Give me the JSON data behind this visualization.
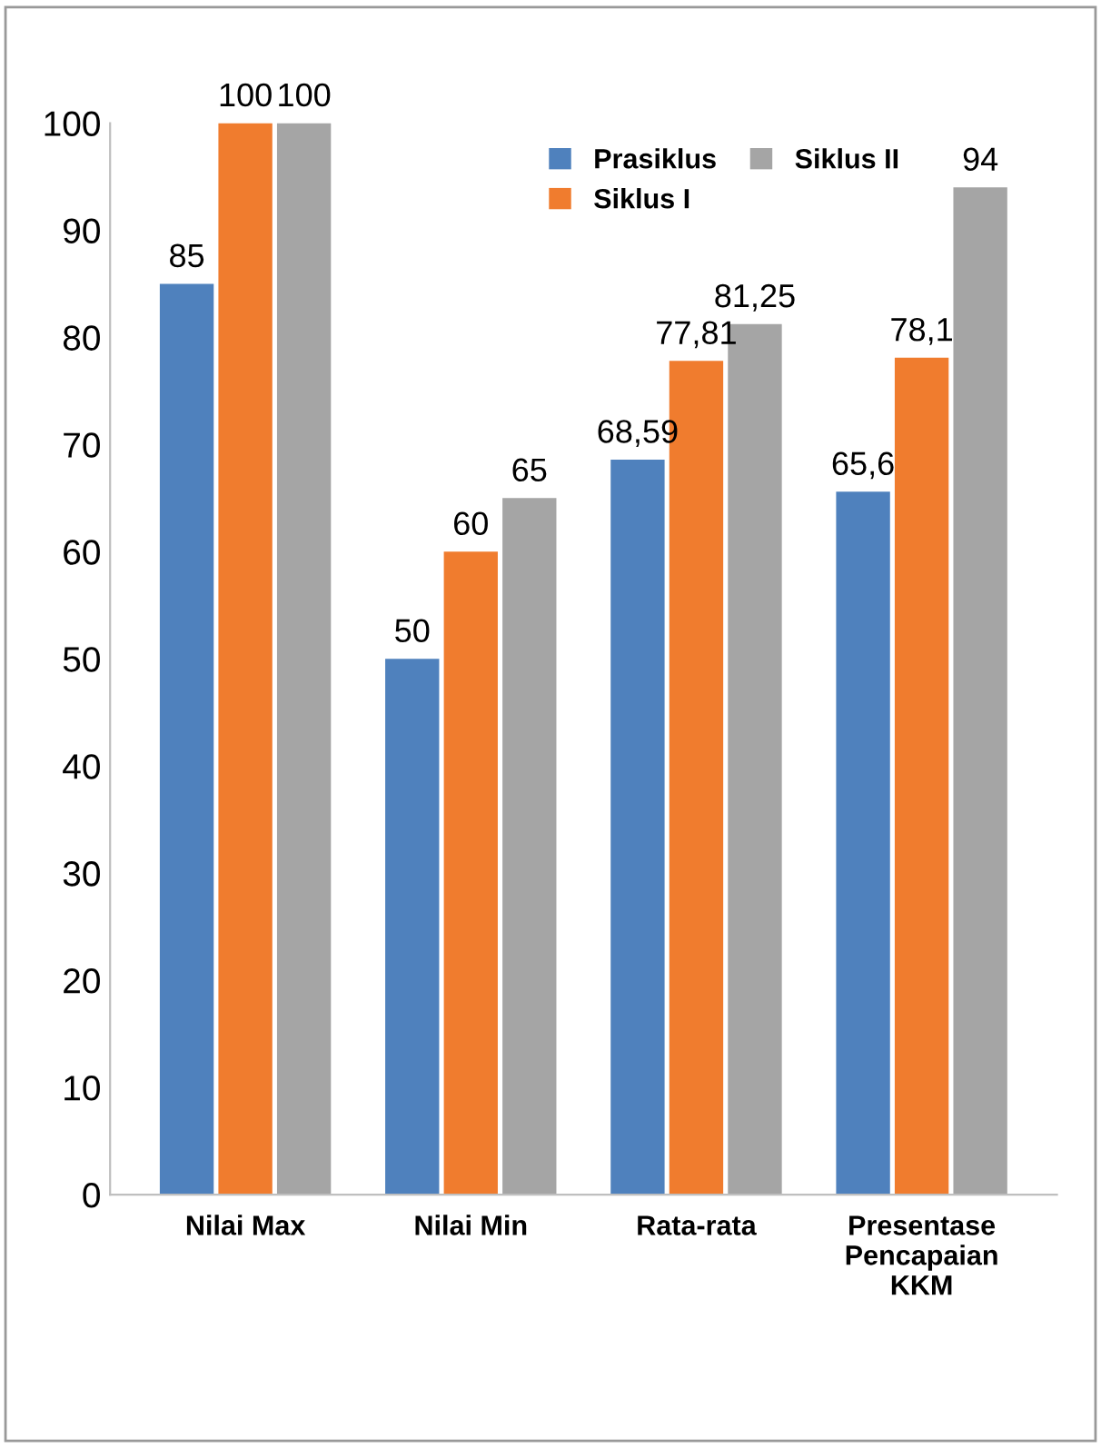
{
  "chart_data": {
    "type": "bar",
    "categories": [
      "Nilai Max",
      "Nilai Min",
      "Rata-rata",
      "Presentase Pencapaian KKM"
    ],
    "series": [
      {
        "name": "Prasiklus",
        "color": "#4f81bd",
        "values": [
          85,
          50,
          68.59,
          65.6
        ],
        "value_labels": [
          "85",
          "50",
          "68,59",
          "65,6"
        ]
      },
      {
        "name": "Siklus I",
        "color": "#f07c2e",
        "values": [
          100,
          60,
          77.81,
          78.1
        ],
        "value_labels": [
          "100",
          "60",
          "77,81",
          "78,1"
        ]
      },
      {
        "name": "Siklus II",
        "color": "#a5a5a5",
        "values": [
          100,
          65,
          81.25,
          94
        ],
        "value_labels": [
          "100",
          "65",
          "81,25",
          "94"
        ]
      }
    ],
    "ylim": [
      0,
      100
    ],
    "yticks": [
      0,
      10,
      20,
      30,
      40,
      50,
      60,
      70,
      80,
      90,
      100
    ],
    "grid": false,
    "legend": "top right"
  }
}
